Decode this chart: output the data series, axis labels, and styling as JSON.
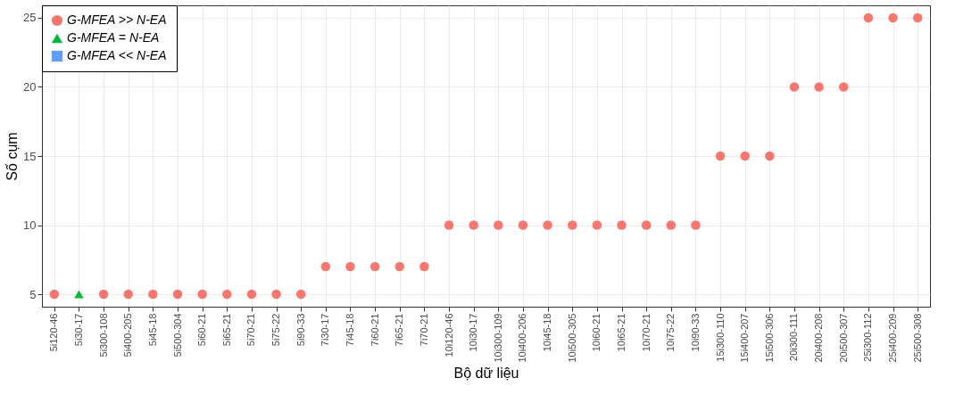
{
  "chart_data": {
    "type": "scatter",
    "xlabel": "Bộ dữ liệu",
    "ylabel": "Số cụm",
    "categories": [
      "5i120-46",
      "5i30-17",
      "5i300-108",
      "5i400-205",
      "5i45-18",
      "5i500-304",
      "5i60-21",
      "5i65-21",
      "5i70-21",
      "5i75-22",
      "5i90-33",
      "7i30-17",
      "7i45-18",
      "7i60-21",
      "7i65-21",
      "7i70-21",
      "10i120-46",
      "10i30-17",
      "10i300-109",
      "10i400-206",
      "10i45-18",
      "10i500-305",
      "10i60-21",
      "10i65-21",
      "10i70-21",
      "10i75-22",
      "10i90-33",
      "15i300-110",
      "15i400-207",
      "15i500-306",
      "20i300-111",
      "20i400-208",
      "20i500-307",
      "25i300-112",
      "25i400-209",
      "25i500-308"
    ],
    "series": [
      {
        "name": "G-MFEA >> N-EA",
        "color": "#f8766d",
        "marker": "circle",
        "values": [
          5,
          null,
          5,
          5,
          5,
          5,
          5,
          5,
          5,
          5,
          5,
          7,
          7,
          7,
          7,
          7,
          10,
          10,
          10,
          10,
          10,
          10,
          10,
          10,
          10,
          10,
          10,
          15,
          15,
          15,
          20,
          20,
          20,
          25,
          25,
          25
        ]
      },
      {
        "name": "G-MFEA = N-EA",
        "color": "#00ba38",
        "marker": "triangle",
        "values": [
          null,
          5,
          null,
          null,
          null,
          null,
          null,
          null,
          null,
          null,
          null,
          null,
          null,
          null,
          null,
          null,
          null,
          null,
          null,
          null,
          null,
          null,
          null,
          null,
          null,
          null,
          null,
          null,
          null,
          null,
          null,
          null,
          null,
          null,
          null,
          null
        ]
      },
      {
        "name": "G-MFEA << N-EA",
        "color": "#619cff",
        "marker": "square",
        "values": [
          null,
          null,
          null,
          null,
          null,
          null,
          null,
          null,
          null,
          null,
          null,
          null,
          null,
          null,
          null,
          null,
          null,
          null,
          null,
          null,
          null,
          null,
          null,
          null,
          null,
          null,
          null,
          null,
          null,
          null,
          null,
          null,
          null,
          null,
          null,
          null
        ]
      }
    ],
    "ylim": [
      4.1,
      25.9
    ],
    "yticks": [
      5,
      10,
      15,
      20,
      25
    ],
    "grid": true,
    "legend": "top left"
  }
}
